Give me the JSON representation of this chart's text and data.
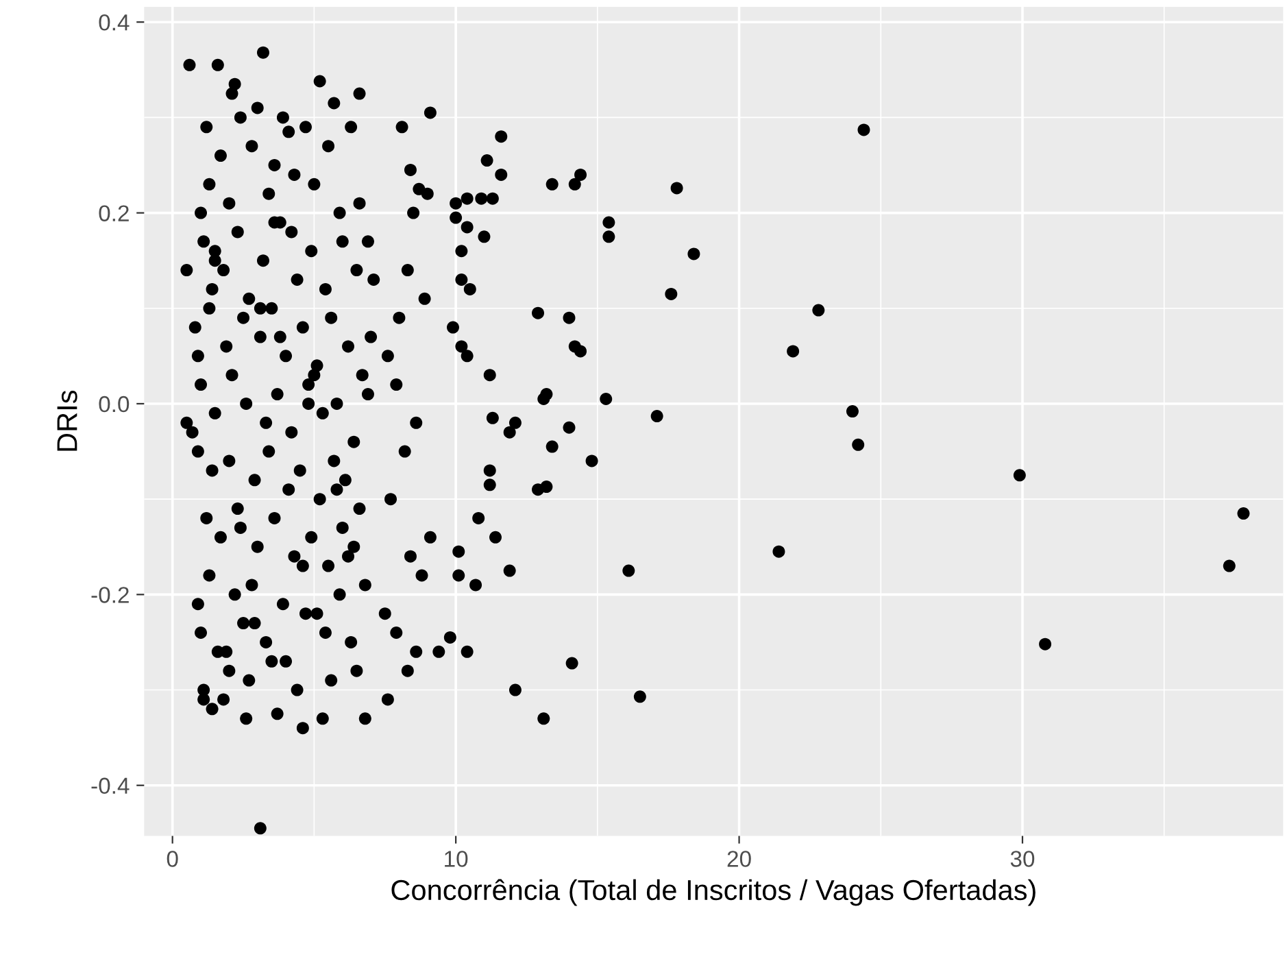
{
  "chart_data": {
    "type": "scatter",
    "xlabel": "Concorrência (Total de Inscritos / Vagas Ofertadas)",
    "ylabel": "DRIs",
    "xlim": [
      -1.0,
      39.2
    ],
    "ylim": [
      -0.453,
      0.416
    ],
    "xticks": [
      0,
      10,
      20,
      30
    ],
    "yticks": [
      0.4,
      0.2,
      {
        "value": 0.0,
        "label": "0.0"
      },
      -0.2,
      -0.4
    ],
    "grid": true,
    "marker": "circle",
    "series": [
      {
        "color": "#000000",
        "x": [
          24.4,
          17.8,
          18.4,
          17.6,
          15.4,
          15.4,
          14.4,
          14.2,
          13.4,
          22.8,
          21.9,
          24.0,
          24.2,
          29.9,
          37.8,
          37.3,
          30.8,
          21.4,
          16.1,
          14.1,
          16.5,
          13.1,
          12.1,
          17.1,
          15.3,
          14.8,
          14.0,
          13.4,
          13.2,
          12.9,
          13.1,
          13.2,
          12.9,
          14.0,
          14.2,
          14.4,
          12.1,
          11.9,
          11.3,
          11.2,
          11.2,
          11.4,
          10.8,
          11.9,
          10.1,
          10.1,
          10.7,
          10.4,
          9.8,
          9.4,
          11.2,
          11.1,
          11.6,
          11.6,
          11.3,
          10.9,
          10.4,
          10.0,
          10.0,
          10.4,
          11.0,
          10.2,
          10.2,
          10.5,
          9.9,
          10.2,
          10.4,
          9.1,
          9.0,
          8.7,
          8.1,
          8.4,
          8.5,
          8.3,
          8.9,
          8.0,
          7.6,
          7.9,
          8.6,
          8.2,
          7.7,
          9.1,
          8.4,
          8.8,
          7.5,
          7.9,
          8.6,
          8.3,
          7.6,
          0.6,
          1.6,
          3.2,
          2.2,
          2.1,
          5.2,
          6.6,
          5.7,
          4.1,
          3.1,
          4.6,
          1.4,
          1.1,
          2.6,
          5.3,
          6.8,
          3.7,
          0.5,
          0.5,
          0.9,
          0.9,
          1.2,
          1.0,
          1.3,
          1.5,
          1.7,
          2.0,
          2.4,
          2.8,
          3.0,
          3.4,
          3.6,
          3.9,
          4.3,
          4.7,
          5.0,
          5.5,
          5.9,
          6.3,
          6.6,
          6.9,
          7.1,
          1.1,
          1.4,
          1.8,
          2.3,
          2.7,
          3.2,
          3.8,
          4.4,
          4.9,
          5.4,
          6.0,
          6.5,
          0.8,
          1.3,
          1.9,
          2.5,
          3.1,
          3.5,
          4.0,
          4.6,
          5.1,
          5.6,
          6.2,
          6.7,
          7.0,
          1.0,
          1.5,
          2.1,
          2.6,
          3.3,
          3.7,
          4.2,
          4.8,
          5.3,
          5.8,
          6.4,
          6.9,
          0.9,
          1.4,
          2.0,
          2.9,
          3.4,
          4.1,
          4.5,
          5.2,
          5.7,
          6.1,
          6.6,
          1.2,
          1.7,
          2.4,
          3.0,
          3.6,
          4.3,
          4.9,
          5.5,
          6.0,
          6.4,
          1.3,
          2.2,
          2.8,
          3.9,
          4.6,
          5.1,
          5.9,
          6.8,
          1.0,
          1.6,
          2.5,
          3.3,
          4.0,
          4.7,
          5.4,
          6.3,
          2.0,
          3.5,
          4.4,
          5.6,
          6.5,
          1.1,
          1.8,
          2.7,
          3.8,
          0.7,
          1.5,
          2.3,
          3.1,
          4.8,
          6.2,
          1.9,
          2.9,
          4.2,
          5.0,
          5.8,
          3.6
        ],
        "values": [
          0.287,
          0.226,
          0.157,
          0.115,
          0.19,
          0.175,
          0.24,
          0.23,
          0.23,
          0.098,
          0.055,
          -0.008,
          -0.043,
          -0.075,
          -0.115,
          -0.17,
          -0.252,
          -0.155,
          -0.175,
          -0.272,
          -0.307,
          -0.33,
          -0.3,
          -0.013,
          0.005,
          -0.06,
          -0.025,
          -0.045,
          -0.087,
          -0.09,
          0.005,
          0.01,
          0.095,
          0.09,
          0.06,
          0.055,
          -0.02,
          -0.03,
          -0.015,
          -0.07,
          -0.085,
          -0.14,
          -0.12,
          -0.175,
          -0.155,
          -0.18,
          -0.19,
          -0.26,
          -0.245,
          -0.26,
          0.03,
          0.255,
          0.28,
          0.24,
          0.215,
          0.215,
          0.215,
          0.195,
          0.21,
          0.185,
          0.175,
          0.16,
          0.13,
          0.12,
          0.08,
          0.06,
          0.05,
          0.305,
          0.22,
          0.225,
          0.29,
          0.245,
          0.2,
          0.14,
          0.11,
          0.09,
          0.05,
          0.02,
          -0.02,
          -0.05,
          -0.1,
          -0.14,
          -0.16,
          -0.18,
          -0.22,
          -0.24,
          -0.26,
          -0.28,
          -0.31,
          0.355,
          0.355,
          0.368,
          0.335,
          0.325,
          0.338,
          0.325,
          0.315,
          0.285,
          -0.445,
          -0.34,
          -0.32,
          -0.31,
          -0.33,
          -0.33,
          -0.33,
          -0.325,
          0.14,
          -0.02,
          -0.21,
          0.05,
          0.29,
          0.2,
          0.23,
          0.16,
          0.26,
          0.21,
          0.3,
          0.27,
          0.31,
          0.22,
          0.25,
          0.3,
          0.24,
          0.29,
          0.23,
          0.27,
          0.2,
          0.29,
          0.21,
          0.17,
          0.13,
          0.17,
          0.12,
          0.14,
          0.18,
          0.11,
          0.15,
          0.19,
          0.13,
          0.16,
          0.12,
          0.17,
          0.14,
          0.08,
          0.1,
          0.06,
          0.09,
          0.07,
          0.1,
          0.05,
          0.08,
          0.04,
          0.09,
          0.06,
          0.03,
          0.07,
          0.02,
          -0.01,
          0.03,
          0.0,
          -0.02,
          0.01,
          -0.03,
          0.02,
          -0.01,
          0.0,
          -0.04,
          0.01,
          -0.05,
          -0.07,
          -0.06,
          -0.08,
          -0.05,
          -0.09,
          -0.07,
          -0.1,
          -0.06,
          -0.08,
          -0.11,
          -0.12,
          -0.14,
          -0.13,
          -0.15,
          -0.12,
          -0.16,
          -0.14,
          -0.17,
          -0.13,
          -0.15,
          -0.18,
          -0.2,
          -0.19,
          -0.21,
          -0.17,
          -0.22,
          -0.2,
          -0.19,
          -0.24,
          -0.26,
          -0.23,
          -0.25,
          -0.27,
          -0.22,
          -0.24,
          -0.25,
          -0.28,
          -0.27,
          -0.3,
          -0.29,
          -0.28,
          -0.3,
          -0.31,
          -0.29,
          0.07,
          -0.03,
          0.15,
          -0.11,
          0.1,
          0.0,
          -0.16,
          -0.26,
          -0.23,
          0.18,
          0.03,
          -0.09,
          0.19
        ]
      }
    ]
  }
}
